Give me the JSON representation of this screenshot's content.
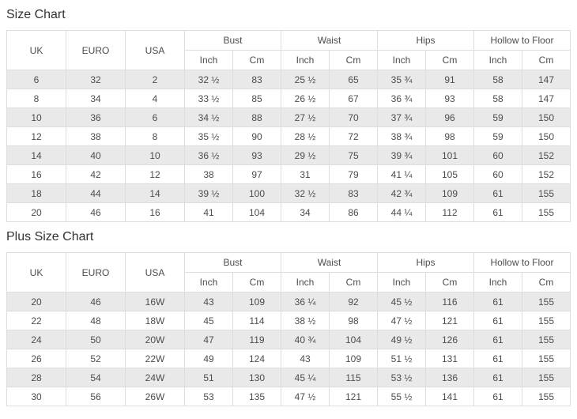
{
  "colors": {
    "title": "#333333",
    "text": "#4d4d4d",
    "border": "#dddddd",
    "stripe": "#e9e9e9",
    "row_alt": "#ffffff"
  },
  "sections": [
    {
      "title": "Size Chart",
      "columns": {
        "plain": [
          "UK",
          "EURO",
          "USA"
        ],
        "groups": [
          "Bust",
          "Waist",
          "Hips",
          "Hollow to Floor"
        ],
        "sub": [
          "Inch",
          "Cm"
        ]
      },
      "rows": [
        [
          "6",
          "32",
          "2",
          "32 ½",
          "83",
          "25 ½",
          "65",
          "35 ¾",
          "91",
          "58",
          "147"
        ],
        [
          "8",
          "34",
          "4",
          "33 ½",
          "85",
          "26 ½",
          "67",
          "36 ¾",
          "93",
          "58",
          "147"
        ],
        [
          "10",
          "36",
          "6",
          "34 ½",
          "88",
          "27 ½",
          "70",
          "37 ¾",
          "96",
          "59",
          "150"
        ],
        [
          "12",
          "38",
          "8",
          "35 ½",
          "90",
          "28 ½",
          "72",
          "38 ¾",
          "98",
          "59",
          "150"
        ],
        [
          "14",
          "40",
          "10",
          "36 ½",
          "93",
          "29 ½",
          "75",
          "39 ¾",
          "101",
          "60",
          "152"
        ],
        [
          "16",
          "42",
          "12",
          "38",
          "97",
          "31",
          "79",
          "41 ¼",
          "105",
          "60",
          "152"
        ],
        [
          "18",
          "44",
          "14",
          "39 ½",
          "100",
          "32 ½",
          "83",
          "42 ¾",
          "109",
          "61",
          "155"
        ],
        [
          "20",
          "46",
          "16",
          "41",
          "104",
          "34",
          "86",
          "44 ¼",
          "112",
          "61",
          "155"
        ]
      ]
    },
    {
      "title": "Plus Size Chart",
      "columns": {
        "plain": [
          "UK",
          "EURO",
          "USA"
        ],
        "groups": [
          "Bust",
          "Waist",
          "Hips",
          "Hollow to Floor"
        ],
        "sub": [
          "Inch",
          "Cm"
        ]
      },
      "rows": [
        [
          "20",
          "46",
          "16W",
          "43",
          "109",
          "36 ¼",
          "92",
          "45 ½",
          "116",
          "61",
          "155"
        ],
        [
          "22",
          "48",
          "18W",
          "45",
          "114",
          "38 ½",
          "98",
          "47 ½",
          "121",
          "61",
          "155"
        ],
        [
          "24",
          "50",
          "20W",
          "47",
          "119",
          "40 ¾",
          "104",
          "49 ½",
          "126",
          "61",
          "155"
        ],
        [
          "26",
          "52",
          "22W",
          "49",
          "124",
          "43",
          "109",
          "51 ½",
          "131",
          "61",
          "155"
        ],
        [
          "28",
          "54",
          "24W",
          "51",
          "130",
          "45 ¼",
          "115",
          "53 ½",
          "136",
          "61",
          "155"
        ],
        [
          "30",
          "56",
          "26W",
          "53",
          "135",
          "47 ½",
          "121",
          "55 ½",
          "141",
          "61",
          "155"
        ]
      ]
    }
  ]
}
